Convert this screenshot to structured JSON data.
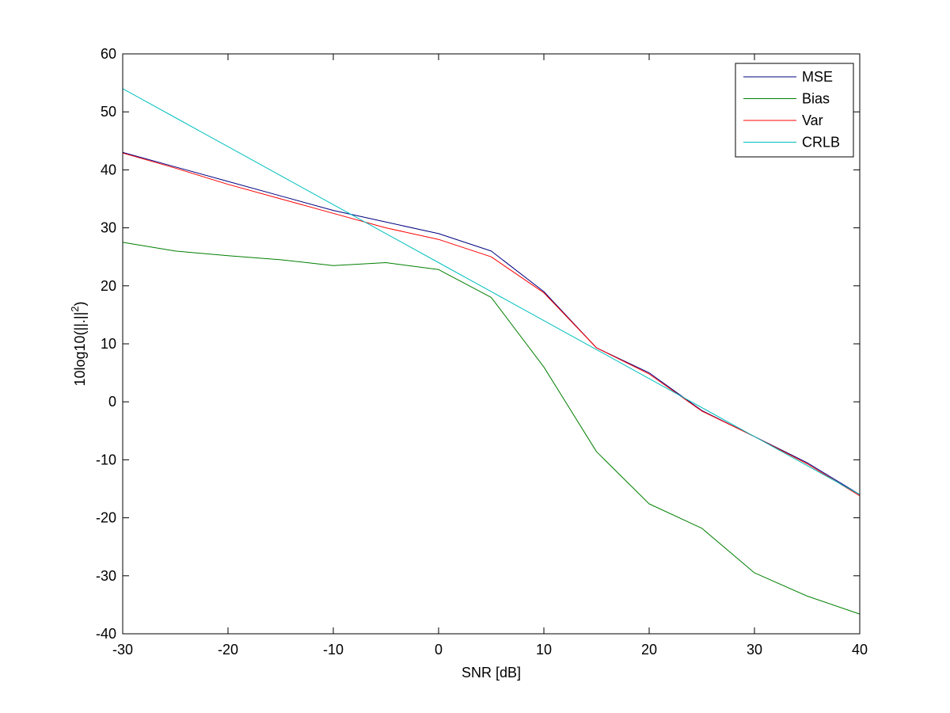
{
  "chart_data": {
    "type": "line",
    "title": "",
    "xlabel": "SNR [dB]",
    "ylabel_main": "10log10(||.||",
    "ylabel_sup": "2",
    "ylabel_tail": ")",
    "xlim": [
      -30,
      40
    ],
    "ylim": [
      -40,
      60
    ],
    "x_ticks": [
      -30,
      -20,
      -10,
      0,
      10,
      20,
      30,
      40
    ],
    "y_ticks": [
      -40,
      -30,
      -20,
      -10,
      0,
      10,
      20,
      30,
      40,
      50,
      60
    ],
    "grid": false,
    "legend_position": "top-right",
    "x": [
      -30,
      -25,
      -20,
      -15,
      -10,
      -5,
      0,
      5,
      10,
      15,
      20,
      25,
      30,
      35,
      40
    ],
    "series": [
      {
        "name": "MSE",
        "color": "#000080",
        "values": [
          43.0,
          40.5,
          38.0,
          35.5,
          33.0,
          31.0,
          29.0,
          26.0,
          19.0,
          9.3,
          5.0,
          -1.5,
          -6.0,
          -10.5,
          -16.0
        ]
      },
      {
        "name": "Bias",
        "color": "#007F00",
        "values": [
          27.5,
          26.0,
          25.2,
          24.5,
          23.5,
          24.0,
          22.8,
          18.0,
          6.0,
          -8.6,
          -17.6,
          -21.8,
          -29.5,
          -33.5,
          -36.6
        ]
      },
      {
        "name": "Var",
        "color": "#FF0000",
        "values": [
          42.9,
          40.3,
          37.5,
          35.0,
          32.5,
          30.0,
          28.0,
          25.0,
          18.8,
          9.3,
          4.8,
          -1.6,
          -6.0,
          -10.7,
          -16.2
        ]
      },
      {
        "name": "CRLB",
        "color": "#00BFBF",
        "values": [
          54.0,
          49.0,
          44.0,
          39.0,
          34.0,
          29.0,
          24.0,
          19.0,
          14.0,
          9.0,
          4.0,
          -1.0,
          -6.0,
          -11.0,
          -16.0
        ]
      }
    ]
  }
}
